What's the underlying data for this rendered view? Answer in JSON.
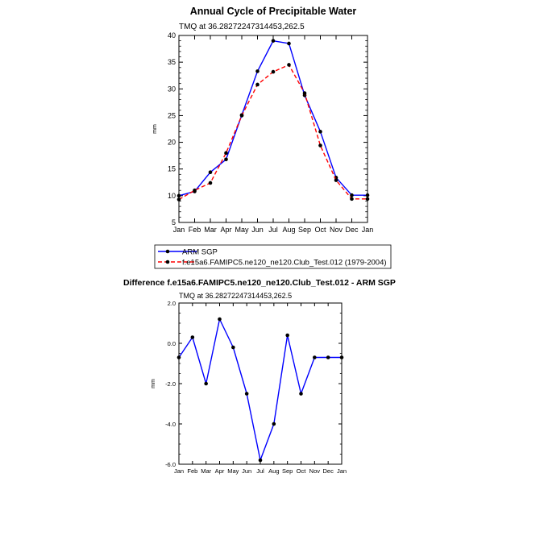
{
  "chart_data": [
    {
      "type": "line",
      "title": "Annual Cycle of Precipitable Water",
      "subtitle": "TMQ at 36.28272247314453,262.5",
      "xlabel": "",
      "ylabel": "mm",
      "categories": [
        "Jan",
        "Feb",
        "Mar",
        "Apr",
        "May",
        "Jun",
        "Jul",
        "Aug",
        "Sep",
        "Oct",
        "Nov",
        "Dec",
        "Jan"
      ],
      "ylim": [
        5,
        40
      ],
      "yticks": [
        "5",
        "10",
        "15",
        "20",
        "25",
        "30",
        "35",
        "40"
      ],
      "legend_position": "bottom",
      "series": [
        {
          "name": "ARM SGP",
          "color": "#0000ff",
          "dash": "solid",
          "values": [
            10.0,
            10.8,
            14.4,
            16.8,
            25.1,
            33.3,
            39.0,
            38.5,
            28.8,
            22.0,
            13.4,
            10.1,
            10.1
          ]
        },
        {
          "name": "f.e15a6.FAMIPC5.ne120_ne120.Club_Test.012 (1979-2004)",
          "color": "#ff0000",
          "dash": "dashed",
          "values": [
            9.3,
            11.0,
            12.4,
            18.0,
            25.0,
            30.8,
            33.2,
            34.5,
            29.2,
            19.4,
            12.9,
            9.4,
            9.4
          ]
        }
      ]
    },
    {
      "type": "line",
      "title": "Difference f.e15a6.FAMIPC5.ne120_ne120.Club_Test.012 - ARM SGP",
      "subtitle": "TMQ at 36.28272247314453,262.5",
      "xlabel": "",
      "ylabel": "mm",
      "categories": [
        "Jan",
        "Feb",
        "Mar",
        "Apr",
        "May",
        "Jun",
        "Jul",
        "Aug",
        "Sep",
        "Oct",
        "Nov",
        "Dec",
        "Jan"
      ],
      "ylim": [
        -6,
        2
      ],
      "yticks": [
        "-6.0",
        "-4.0",
        "-2.0",
        "0.0",
        "2.0"
      ],
      "series": [
        {
          "color": "#0000ff",
          "dash": "solid",
          "values": [
            -0.7,
            0.3,
            -2.0,
            1.2,
            -0.2,
            -2.5,
            -5.8,
            -4.0,
            0.4,
            -2.5,
            -0.7,
            -0.7,
            -0.7
          ]
        }
      ]
    }
  ]
}
